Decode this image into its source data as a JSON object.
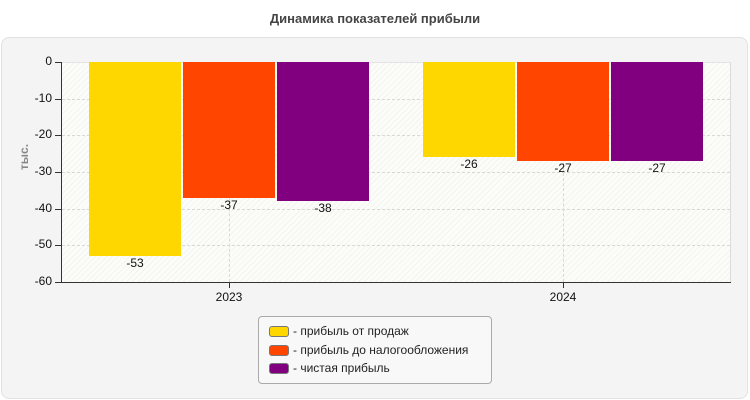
{
  "chart_data": {
    "type": "bar",
    "title": "Динамика показателей прибыли",
    "xlabel": "",
    "ylabel": "тыс.",
    "ylim": [
      -60,
      0
    ],
    "yticks": [
      0,
      -10,
      -20,
      -30,
      -40,
      -50,
      -60
    ],
    "grid": true,
    "legend_position": "bottom",
    "categories": [
      "2023",
      "2024"
    ],
    "series": [
      {
        "name": "прибыль от продаж",
        "color": "#FFD700",
        "values": [
          -53,
          -26
        ]
      },
      {
        "name": "прибыль до налогообложения",
        "color": "#FF4500",
        "values": [
          -37,
          -27
        ]
      },
      {
        "name": "чистая прибыль",
        "color": "#800080",
        "values": [
          -38,
          -27
        ]
      }
    ]
  },
  "labels": {
    "title": "Динамика показателей прибыли",
    "yaxis_title": "тыс.",
    "yticks": [
      "0",
      "-10",
      "-20",
      "-30",
      "-40",
      "-50",
      "-60"
    ],
    "categories": [
      "2023",
      "2024"
    ],
    "value_labels": [
      [
        "-53",
        "-37",
        "-38"
      ],
      [
        "-26",
        "-27",
        "-27"
      ]
    ],
    "legend": [
      "- прибыль от продаж",
      "- прибыль до налогообложения",
      "- чистая прибыль"
    ]
  }
}
